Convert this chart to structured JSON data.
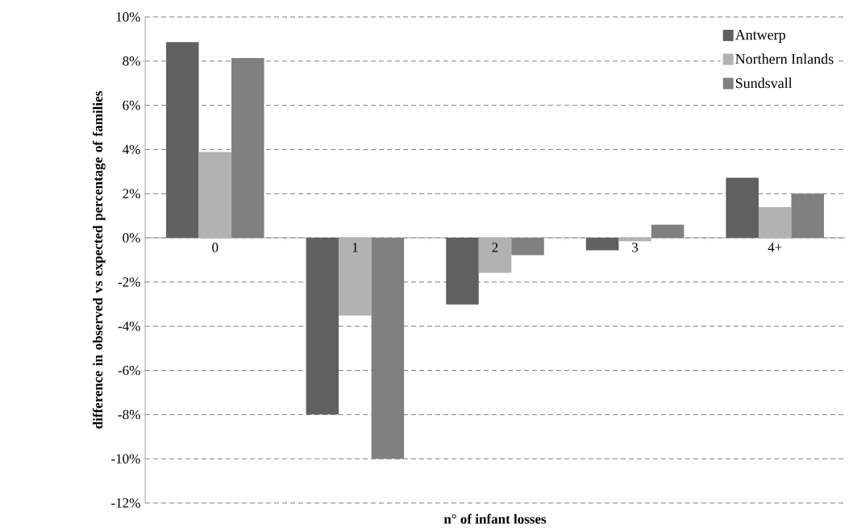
{
  "chart_data": {
    "type": "bar",
    "xlabel": "n° of infant losses",
    "ylabel": "difference in observed vs expected percentage of families",
    "categories": [
      "0",
      "1",
      "2",
      "3",
      "4+"
    ],
    "series": [
      {
        "name": "Antwerp",
        "color": "#606060",
        "values": [
          8.86,
          -8.0,
          -3.02,
          -0.56,
          2.72
        ]
      },
      {
        "name": "Northern Inlands",
        "color": "#b2b2b2",
        "values": [
          3.89,
          -3.52,
          -1.58,
          -0.15,
          1.39
        ]
      },
      {
        "name": "Sundsvall",
        "color": "#808080",
        "values": [
          8.14,
          -10.0,
          -0.78,
          0.6,
          2.0
        ]
      }
    ],
    "ylim": [
      -12,
      10
    ],
    "yticks": [
      {
        "value": -12,
        "label": "-12%"
      },
      {
        "value": -10,
        "label": "-10%"
      },
      {
        "value": -8,
        "label": "-8%"
      },
      {
        "value": -6,
        "label": "-6%"
      },
      {
        "value": -4,
        "label": "-4%"
      },
      {
        "value": -2,
        "label": "-2%"
      },
      {
        "value": 0,
        "label": "0%"
      },
      {
        "value": 2,
        "label": "2%"
      },
      {
        "value": 4,
        "label": "4%"
      },
      {
        "value": 6,
        "label": "6%"
      },
      {
        "value": 8,
        "label": "8%"
      },
      {
        "value": 10,
        "label": "10%"
      }
    ],
    "grid": "y",
    "legend": "top right"
  }
}
